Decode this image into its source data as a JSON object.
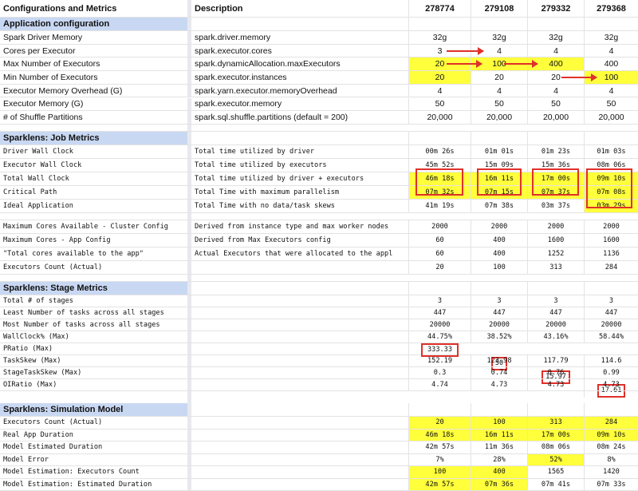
{
  "header": {
    "col_config": "Configurations and Metrics",
    "col_desc": "Description",
    "runs": [
      "278774",
      "279108",
      "279332",
      "279368"
    ]
  },
  "sections": {
    "app_config": "Application configuration",
    "job_metrics": "Sparklens: Job Metrics",
    "stage_metrics": "Sparklens: Stage Metrics",
    "simulation": "Sparklens: Simulation Model"
  },
  "app_config": [
    {
      "name": "Spark Driver Memory",
      "desc": "spark.driver.memory",
      "values": [
        "32g",
        "32g",
        "32g",
        "32g"
      ]
    },
    {
      "name": "Cores per Executor",
      "desc": "spark.executor.cores",
      "values": [
        "3",
        "4",
        "4",
        "4"
      ]
    },
    {
      "name": "Max Number of Executors",
      "desc": "spark.dynamicAllocation.maxExecutors",
      "values": [
        "20",
        "100",
        "400",
        "400"
      ]
    },
    {
      "name": "Min Number of Executors",
      "desc": "spark.executor.instances",
      "values": [
        "20",
        "20",
        "20",
        "100"
      ]
    },
    {
      "name": "Executor Memory Overhead (G)",
      "desc": "spark.yarn.executor.memoryOverhead",
      "values": [
        "4",
        "4",
        "4",
        "4"
      ]
    },
    {
      "name": "Executor Memory (G)",
      "desc": "spark.executor.memory",
      "values": [
        "50",
        "50",
        "50",
        "50"
      ]
    },
    {
      "name": "# of Shuffle Partitions",
      "desc": "spark.sql.shuffle.partitions (default = 200)",
      "values": [
        "20,000",
        "20,000",
        "20,000",
        "20,000"
      ]
    }
  ],
  "job_metrics": [
    {
      "name": "Driver Wall Clock",
      "desc": "Total time utilized by driver",
      "values": [
        "00m 26s",
        "01m 01s",
        "01m 23s",
        "01m 03s"
      ]
    },
    {
      "name": "Executor Wall Clock",
      "desc": "Total time utilized by executors",
      "values": [
        "45m 52s",
        "15m 09s",
        "15m 36s",
        "08m 06s"
      ]
    },
    {
      "name": "Total Wall Clock",
      "desc": "Total time utilized by driver + executors",
      "values": [
        "46m 18s",
        "16m 11s",
        "17m 00s",
        "09m 10s"
      ]
    },
    {
      "name": "Critical Path",
      "desc": "Total Time with maximum parallelism",
      "values": [
        "07m 32s",
        "07m 15s",
        "07m 37s",
        "07m 08s"
      ]
    },
    {
      "name": "Ideal Application",
      "desc": "Total Time with no data/task skews",
      "values": [
        "41m 19s",
        "07m 38s",
        "03m 37s",
        "03m 29s"
      ]
    }
  ],
  "cores": [
    {
      "name": "Maximum Cores Available - Cluster Config",
      "desc": "Derived from instance type and max worker nodes",
      "values": [
        "2000",
        "2000",
        "2000",
        "2000"
      ]
    },
    {
      "name": "Maximum Cores - App Config",
      "desc": "Derived from Max Executors config",
      "values": [
        "60",
        "400",
        "1600",
        "1600"
      ]
    },
    {
      "name": "\"Total cores available to the app\"",
      "desc": "Actual Executors that were allocated to the appl",
      "values": [
        "60",
        "400",
        "1252",
        "1136"
      ]
    },
    {
      "name": "Executors Count (Actual)",
      "desc": "",
      "values": [
        "20",
        "100",
        "313",
        "284"
      ]
    }
  ],
  "stage_metrics": [
    {
      "name": "Total # of stages",
      "values": [
        "3",
        "3",
        "3",
        "3"
      ]
    },
    {
      "name": "Least Number of tasks across all stages",
      "values": [
        "447",
        "447",
        "447",
        "447"
      ]
    },
    {
      "name": "Most Number of tasks across all stages",
      "values": [
        "20000",
        "20000",
        "20000",
        "20000"
      ]
    },
    {
      "name": "WallClock% (Max)",
      "values": [
        "44.75%",
        "38.52%",
        "43.16%",
        "58.44%"
      ]
    },
    {
      "name": "PRatio (Max)",
      "values": [
        "333.33",
        "50",
        "15.97",
        "17.61"
      ]
    },
    {
      "name": "TaskSkew (Max)",
      "values": [
        "152.19",
        "123.98",
        "117.79",
        "114.6"
      ]
    },
    {
      "name": "StageTaskSkew (Max)",
      "values": [
        "0.3",
        "0.74",
        "0.76",
        "0.99"
      ]
    },
    {
      "name": "OIRatio (Max)",
      "values": [
        "4.74",
        "4.73",
        "4.73",
        "4.73"
      ]
    }
  ],
  "simulation": [
    {
      "name": "Executors Count (Actual)",
      "values": [
        "20",
        "100",
        "313",
        "284"
      ]
    },
    {
      "name": "Real App Duration",
      "values": [
        "46m 18s",
        "16m 11s",
        "17m 00s",
        "09m 10s"
      ]
    },
    {
      "name": "Model Estimated Duration",
      "values": [
        "42m 57s",
        "11m 36s",
        "08m 06s",
        "08m 24s"
      ]
    },
    {
      "name": "Model Error",
      "values": [
        "7%",
        "28%",
        "52%",
        "8%"
      ]
    },
    {
      "name": "Model Estimation: Executors Count",
      "values": [
        "100",
        "400",
        "1565",
        "1420"
      ]
    },
    {
      "name": "Model Estimation: Estimated Duration",
      "values": [
        "42m 57s",
        "07m 36s",
        "07m 41s",
        "07m 33s"
      ]
    }
  ],
  "colors": {
    "highlight": "#ffff3b",
    "section_bg": "#c9d8f2",
    "annotation": "#e0302a"
  }
}
